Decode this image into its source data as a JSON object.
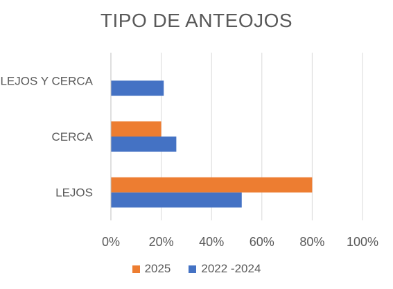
{
  "chart_data": {
    "type": "bar",
    "orientation": "horizontal",
    "title": "TIPO DE ANTEOJOS",
    "categories": [
      "LEJOS Y CERCA",
      "CERCA",
      "LEJOS"
    ],
    "series": [
      {
        "name": "2025",
        "color": "#ED7D31",
        "values": [
          0,
          0.2,
          0.8
        ]
      },
      {
        "name": "2022 -2024",
        "color": "#4472C4",
        "values": [
          0.21,
          0.26,
          0.52
        ]
      }
    ],
    "xlim": [
      0,
      1
    ],
    "xticks": [
      "0%",
      "20%",
      "40%",
      "60%",
      "80%",
      "100%"
    ],
    "grid": true,
    "legend_position": "bottom"
  }
}
